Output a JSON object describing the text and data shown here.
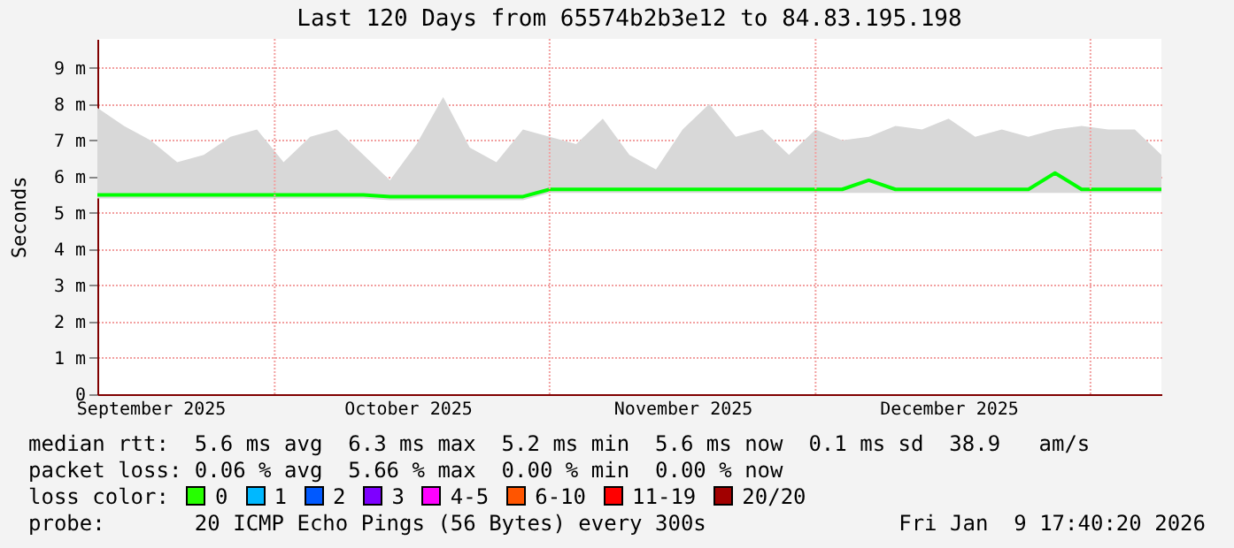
{
  "chart_data": {
    "type": "line",
    "title": "Last 120 Days from 65574b2b3e12 to 84.83.195.198",
    "ylabel": "Seconds",
    "x": [
      "2025-09-11",
      "2025-09-14",
      "2025-09-17",
      "2025-09-20",
      "2025-09-23",
      "2025-09-26",
      "2025-09-29",
      "2025-10-02",
      "2025-10-05",
      "2025-10-08",
      "2025-10-11",
      "2025-10-14",
      "2025-10-17",
      "2025-10-20",
      "2025-10-23",
      "2025-10-26",
      "2025-10-29",
      "2025-11-01",
      "2025-11-04",
      "2025-11-07",
      "2025-11-10",
      "2025-11-13",
      "2025-11-16",
      "2025-11-19",
      "2025-11-22",
      "2025-11-25",
      "2025-11-28",
      "2025-12-01",
      "2025-12-04",
      "2025-12-07",
      "2025-12-10",
      "2025-12-13",
      "2025-12-16",
      "2025-12-19",
      "2025-12-22",
      "2025-12-25",
      "2025-12-28",
      "2025-12-31",
      "2026-01-03",
      "2026-01-06",
      "2026-01-09"
    ],
    "series": [
      {
        "color": "#00ff00",
        "values": [
          5.5,
          5.5,
          5.5,
          5.5,
          5.5,
          5.5,
          5.5,
          5.5,
          5.5,
          5.5,
          5.5,
          5.45,
          5.45,
          5.45,
          5.45,
          5.45,
          5.45,
          5.65,
          5.65,
          5.65,
          5.65,
          5.65,
          5.65,
          5.65,
          5.65,
          5.65,
          5.65,
          5.65,
          5.65,
          5.9,
          5.65,
          5.65,
          5.65,
          5.65,
          5.65,
          5.65,
          6.1,
          5.65,
          5.65,
          5.65,
          5.65
        ],
        "lower": [
          5.4,
          5.4,
          5.4,
          5.4,
          5.4,
          5.4,
          5.4,
          5.4,
          5.4,
          5.4,
          5.4,
          5.35,
          5.35,
          5.35,
          5.35,
          5.35,
          5.35,
          5.55,
          5.55,
          5.55,
          5.55,
          5.55,
          5.55,
          5.55,
          5.55,
          5.55,
          5.55,
          5.55,
          5.55,
          5.55,
          5.55,
          5.55,
          5.55,
          5.55,
          5.55,
          5.55,
          5.55,
          5.55,
          5.55,
          5.55,
          5.55
        ],
        "upper": [
          7.9,
          7.4,
          7.0,
          6.4,
          6.6,
          7.1,
          7.3,
          6.4,
          7.1,
          7.3,
          6.6,
          5.9,
          6.9,
          8.2,
          6.8,
          6.4,
          7.3,
          7.1,
          6.9,
          7.6,
          6.6,
          6.2,
          7.3,
          8.0,
          7.1,
          7.3,
          6.6,
          7.3,
          7.0,
          7.1,
          7.4,
          7.3,
          7.6,
          7.1,
          7.3,
          7.1,
          7.3,
          7.4,
          7.3,
          7.3,
          6.6
        ]
      }
    ],
    "xlim": [
      "2025-09-11",
      "2026-01-09"
    ],
    "xticks": [
      {
        "value": "2025-09-17",
        "label": "September 2025"
      },
      {
        "value": "2025-10-01",
        "label": null
      },
      {
        "value": "2025-10-16",
        "label": "October 2025"
      },
      {
        "value": "2025-11-01",
        "label": null
      },
      {
        "value": "2025-11-16",
        "label": "November 2025"
      },
      {
        "value": "2025-12-01",
        "label": null
      },
      {
        "value": "2025-12-16",
        "label": "December 2025"
      },
      {
        "value": "2026-01-01",
        "label": null
      }
    ],
    "ylim": [
      0,
      9.8
    ],
    "yticks": [
      0,
      {
        "value": 1,
        "label": "1 m"
      },
      {
        "value": 2,
        "label": "2 m"
      },
      {
        "value": 3,
        "label": "3 m"
      },
      {
        "value": 4,
        "label": "4 m"
      },
      {
        "value": 5,
        "label": "5 m"
      },
      {
        "value": 6,
        "label": "6 m"
      },
      {
        "value": 7,
        "label": "7 m"
      },
      {
        "value": 8,
        "label": "8 m"
      },
      {
        "value": 9,
        "label": "9 m"
      }
    ],
    "grid": true,
    "annotations": [
      "median rtt:  5.6 ms avg  6.3 ms max  5.2 ms min  5.6 ms now  0.1 ms sd  38.9   am/s",
      "packet loss: 0.06 % avg  5.66 % max  0.00 % min  0.00 % now",
      "loss color:",
      "0",
      "1",
      "2",
      "3",
      "4-5",
      "6-10",
      "11-19",
      "20/20",
      "probe:       20 ICMP Echo Pings (56 Bytes) every 300s",
      "Fri Jan  9 17:40:20 2026"
    ]
  }
}
